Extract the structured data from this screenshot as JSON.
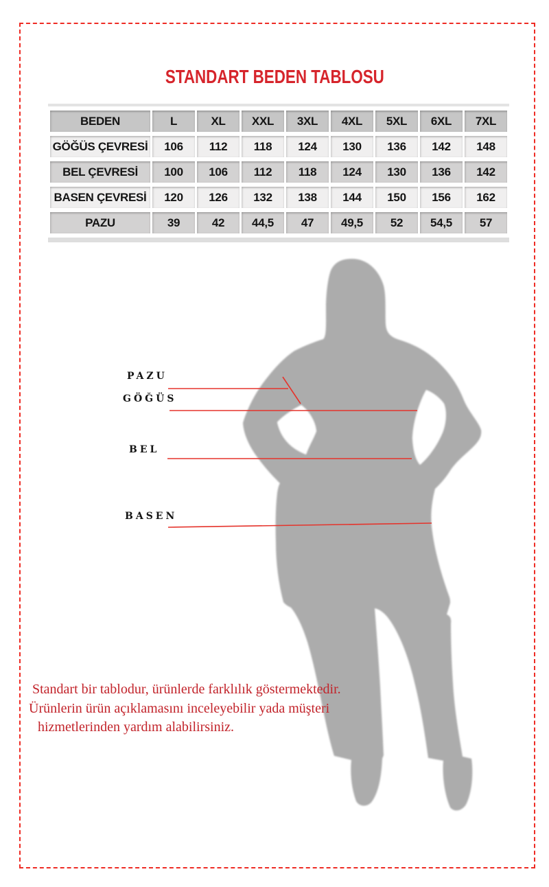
{
  "title": "STANDART BEDEN TABLOSU",
  "size_table": {
    "columns": [
      "BEDEN",
      "L",
      "XL",
      "XXL",
      "3XL",
      "4XL",
      "5XL",
      "6XL",
      "7XL"
    ],
    "rows": [
      {
        "label": "GÖĞÜS ÇEVRESİ",
        "values": [
          "106",
          "112",
          "118",
          "124",
          "130",
          "136",
          "142",
          "148"
        ]
      },
      {
        "label": "BEL ÇEVRESİ",
        "values": [
          "100",
          "106",
          "112",
          "118",
          "124",
          "130",
          "136",
          "142"
        ]
      },
      {
        "label": "BASEN ÇEVRESİ",
        "values": [
          "120",
          "126",
          "132",
          "138",
          "144",
          "150",
          "156",
          "162"
        ]
      },
      {
        "label": "PAZU",
        "values": [
          "39",
          "42",
          "44,5",
          "47",
          "49,5",
          "52",
          "54,5",
          "57"
        ]
      }
    ]
  },
  "measurement_labels": {
    "pazu": "PAZU",
    "gogus": "GÖĞÜS",
    "bel": "BEL",
    "basen": "BASEN"
  },
  "footer_note": {
    "lines": [
      "Standart bir tablodur, ürünlerde farklılık göstermektedir.",
      "Ürünlerin ürün açıklamasını inceleyebilir yada müşteri",
      "hizmetlerinden yardım alabilirsiniz."
    ]
  },
  "colors": {
    "border_red": "#ee2b24",
    "title_red": "#d6242b",
    "line_red": "#e5332b",
    "note_red": "#c2232a",
    "silhouette_gray": "#acacac",
    "table_header_bg": "#c6c6c6",
    "table_row_light": "#f0efef",
    "table_row_dark": "#d3d2d2"
  }
}
